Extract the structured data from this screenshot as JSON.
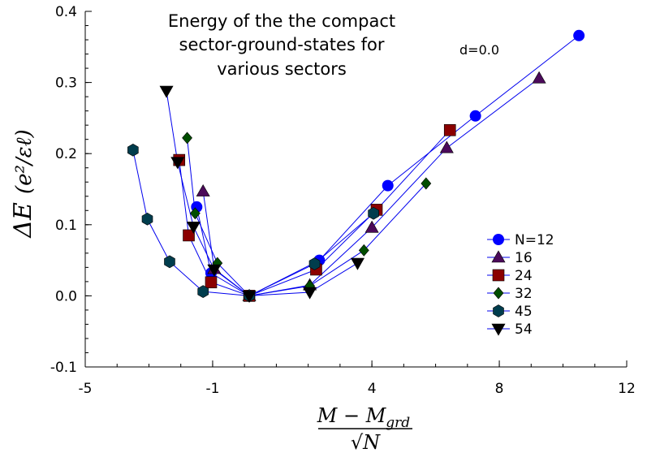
{
  "chart_data": {
    "type": "line",
    "title_lines": [
      "Energy of the the compact",
      "sector-ground-states for",
      "various sectors"
    ],
    "annotation": "d=0.0",
    "xlabel_numerator": "M − M",
    "xlabel_numerator_sub": "grd",
    "xlabel_denominator": "√N",
    "ylabel_main": "ΔE",
    "ylabel_unit": "(e²/εℓ)",
    "xlim": [
      -5,
      12
    ],
    "ylim": [
      -0.1,
      0.4
    ],
    "xticks": [
      {
        "value": -5,
        "label": "-5"
      },
      {
        "value": -1,
        "label": "-1"
      },
      {
        "value": 4,
        "label": "4"
      },
      {
        "value": 8,
        "label": "8"
      },
      {
        "value": 12,
        "label": "12"
      }
    ],
    "yticks": [
      {
        "value": -0.1,
        "label": "-0.1"
      },
      {
        "value": 0.0,
        "label": "0.0"
      },
      {
        "value": 0.1,
        "label": "0.1"
      },
      {
        "value": 0.2,
        "label": "0.2"
      },
      {
        "value": 0.3,
        "label": "0.3"
      },
      {
        "value": 0.4,
        "label": "0.4"
      }
    ],
    "legend_position": "right",
    "line_color": "#0000ee",
    "series": [
      {
        "name": "N=12",
        "marker": "circle",
        "color": "#0000ff",
        "x": [
          -1.5,
          -1.05,
          0.15,
          2.35,
          4.5,
          7.25,
          10.5
        ],
        "y": [
          0.125,
          0.032,
          0.0,
          0.05,
          0.155,
          0.253,
          0.366
        ]
      },
      {
        "name": "16",
        "marker": "triangle",
        "color": "#4b0a5a",
        "x": [
          -1.3,
          -0.95,
          0.15,
          2.05,
          4.0,
          6.35,
          9.25
        ],
        "y": [
          0.147,
          0.038,
          0.0,
          0.015,
          0.096,
          0.208,
          0.306
        ]
      },
      {
        "name": "24",
        "marker": "square",
        "color": "#8b0000",
        "x": [
          -2.05,
          -1.75,
          -1.05,
          0.15,
          2.25,
          4.15,
          6.45
        ],
        "y": [
          0.191,
          0.085,
          0.019,
          0.0,
          0.037,
          0.121,
          0.233
        ]
      },
      {
        "name": "32",
        "marker": "diamond",
        "color": "#004d00",
        "x": [
          -1.8,
          -1.55,
          -0.85,
          0.15,
          2.05,
          3.75,
          5.7
        ],
        "y": [
          0.222,
          0.116,
          0.046,
          0.0,
          0.014,
          0.064,
          0.158
        ]
      },
      {
        "name": "45",
        "marker": "hexagon",
        "color": "#003d4d",
        "x": [
          -3.5,
          -3.05,
          -2.35,
          -1.3,
          0.15,
          2.2,
          4.05
        ],
        "y": [
          0.205,
          0.108,
          0.048,
          0.006,
          0.0,
          0.045,
          0.116
        ]
      },
      {
        "name": "54",
        "marker": "triangle-down",
        "color": "#000000",
        "x": [
          -2.45,
          -2.1,
          -1.6,
          -0.95,
          0.15,
          2.05,
          3.55
        ],
        "y": [
          0.288,
          0.188,
          0.097,
          0.037,
          0.0,
          0.005,
          0.046
        ]
      }
    ]
  }
}
